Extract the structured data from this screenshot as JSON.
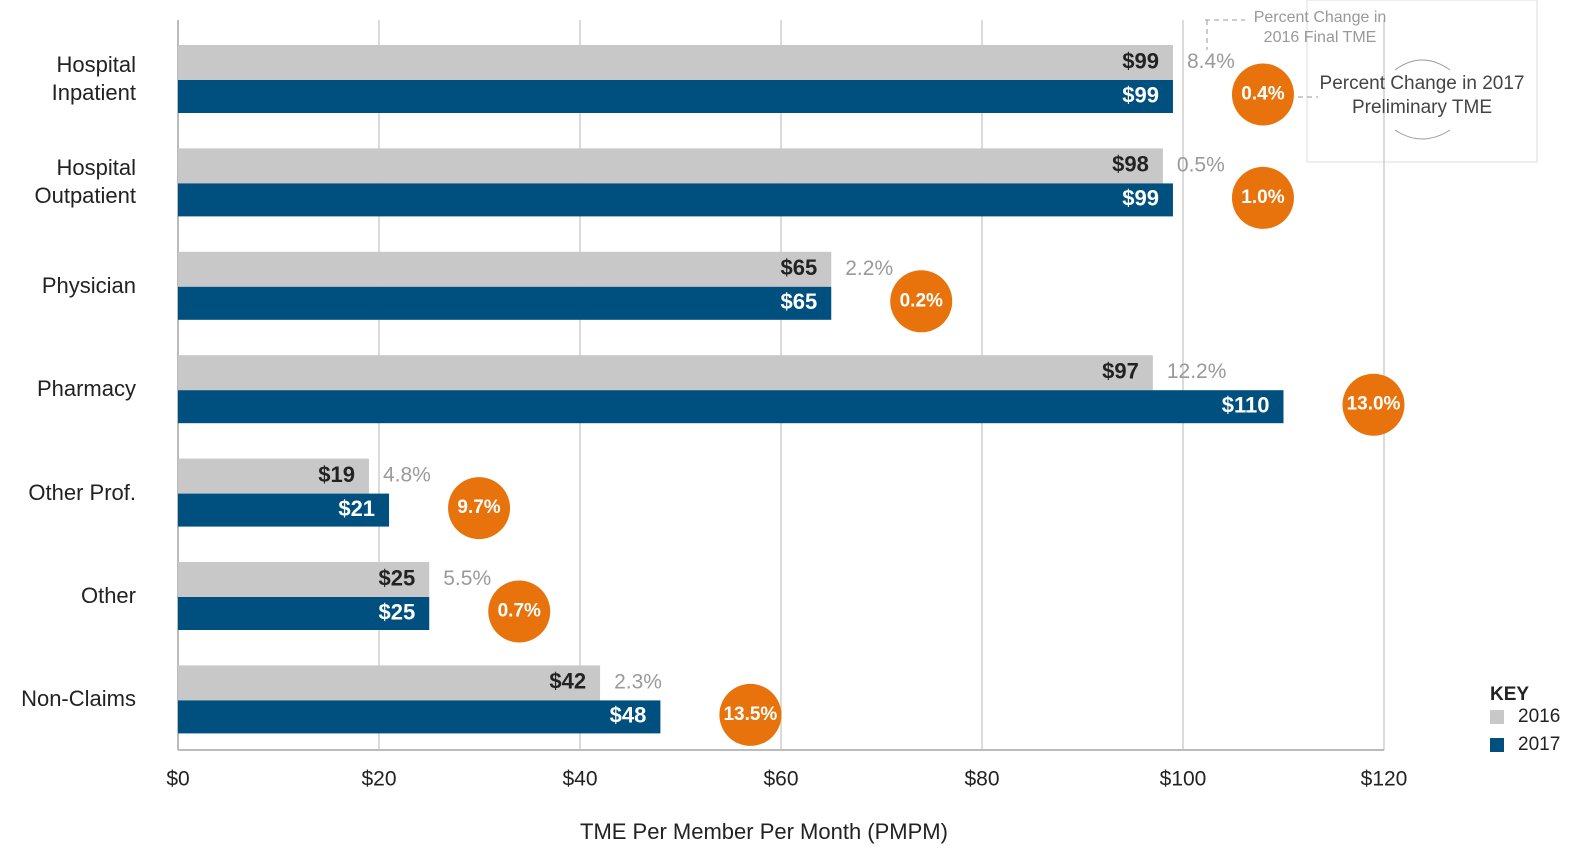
{
  "chart_data": {
    "type": "bar",
    "orientation": "horizontal",
    "x_label": "TME Per Member Per Month (PMPM)",
    "categories": [
      "Hospital Inpatient",
      "Hospital Outpatient",
      "Physician",
      "Pharmacy",
      "Other Prof.",
      "Other",
      "Non-Claims"
    ],
    "series": [
      {
        "name": "2016",
        "color": "#c8c8c8",
        "label_color": "#222222",
        "values": [
          99,
          98,
          65,
          97,
          19,
          25,
          42
        ],
        "value_labels": [
          "$99",
          "$98",
          "$65",
          "$97",
          "$19",
          "$25",
          "$42"
        ],
        "change": [
          8.4,
          0.5,
          2.2,
          12.2,
          4.8,
          5.5,
          2.3
        ],
        "change_labels": [
          "8.4%",
          "0.5%",
          "2.2%",
          "12.2%",
          "4.8%",
          "5.5%",
          "2.3%"
        ],
        "change_color": "#9a9a9a"
      },
      {
        "name": "2017",
        "color": "#00507f",
        "label_color": "#ffffff",
        "values": [
          99,
          99,
          65,
          110,
          21,
          25,
          48
        ],
        "value_labels": [
          "$99",
          "$99",
          "$65",
          "$110",
          "$21",
          "$25",
          "$48"
        ],
        "change": [
          0.4,
          1.0,
          0.2,
          13.0,
          9.7,
          0.7,
          13.5
        ],
        "change_labels": [
          "0.4%",
          "1.0%",
          "0.2%",
          "13.0%",
          "9.7%",
          "0.7%",
          "13.5%"
        ],
        "change_color": "#e8730c"
      }
    ],
    "xlim": [
      0,
      120
    ],
    "xticks": [
      {
        "value": 0,
        "label": "$0"
      },
      {
        "value": 20,
        "label": "$20"
      },
      {
        "value": 40,
        "label": "$40"
      },
      {
        "value": 60,
        "label": "$60"
      },
      {
        "value": 80,
        "label": "$80"
      },
      {
        "value": 100,
        "label": "$100"
      },
      {
        "value": 120,
        "label": "$120"
      }
    ],
    "grid": true,
    "legend_title": "KEY",
    "annotations": [
      "Percent Change in 2016 Final TME",
      "Percent Change in 2017 Preliminary TME"
    ]
  }
}
